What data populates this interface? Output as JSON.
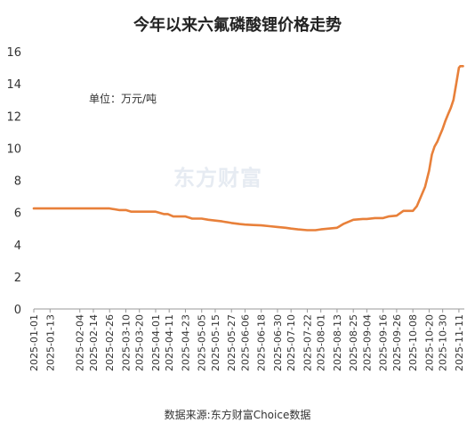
{
  "title": "今年以来六氟磷酸锂价格走势",
  "unit_note": "单位：万元/吨",
  "watermark": "东方财富",
  "source": "数据来源:东方财富Choice数据",
  "colors": {
    "line": "#E8803A",
    "axis": "#999999",
    "text": "#333333"
  },
  "chart_data": {
    "type": "line",
    "title": "今年以来六氟磷酸锂价格走势",
    "ylabel": "单位：万元/吨",
    "ylim": [
      0,
      16
    ],
    "yticks": [
      0,
      2,
      4,
      6,
      8,
      10,
      12,
      14,
      16
    ],
    "grid": false,
    "x_tick_labels": [
      "2025-01-01",
      "2025-01-13",
      "2025-02-04",
      "2025-02-14",
      "2025-02-26",
      "2025-03-10",
      "2025-03-20",
      "2025-04-01",
      "2025-04-11",
      "2025-04-23",
      "2025-05-05",
      "2025-05-15",
      "2025-05-27",
      "2025-06-06",
      "2025-06-18",
      "2025-06-30",
      "2025-07-10",
      "2025-07-22",
      "2025-08-01",
      "2025-08-13",
      "2025-08-25",
      "2025-09-04",
      "2025-09-16",
      "2025-09-26",
      "2025-10-08",
      "2025-10-20",
      "2025-10-30",
      "2025-11-11"
    ],
    "x": [
      "2025-01-01",
      "2025-02-26",
      "2025-03-05",
      "2025-03-10",
      "2025-03-14",
      "2025-04-01",
      "2025-04-07",
      "2025-04-10",
      "2025-04-14",
      "2025-04-23",
      "2025-04-28",
      "2025-05-05",
      "2025-05-10",
      "2025-05-15",
      "2025-05-20",
      "2025-05-27",
      "2025-06-02",
      "2025-06-06",
      "2025-06-12",
      "2025-06-18",
      "2025-06-24",
      "2025-06-30",
      "2025-07-06",
      "2025-07-10",
      "2025-07-15",
      "2025-07-22",
      "2025-07-28",
      "2025-08-01",
      "2025-08-07",
      "2025-08-13",
      "2025-08-18",
      "2025-08-25",
      "2025-09-01",
      "2025-09-04",
      "2025-09-10",
      "2025-09-16",
      "2025-09-20",
      "2025-09-26",
      "2025-10-01",
      "2025-10-08",
      "2025-10-11",
      "2025-10-14",
      "2025-10-17",
      "2025-10-20",
      "2025-10-22",
      "2025-10-24",
      "2025-10-26",
      "2025-10-28",
      "2025-10-30",
      "2025-11-01",
      "2025-11-03",
      "2025-11-05",
      "2025-11-07",
      "2025-11-09",
      "2025-11-11",
      "2025-11-12",
      "2025-11-13",
      "2025-11-14"
    ],
    "series": [
      {
        "values": [
          6.25,
          6.25,
          6.15,
          6.15,
          6.05,
          6.05,
          5.9,
          5.9,
          5.75,
          5.75,
          5.62,
          5.62,
          5.55,
          5.5,
          5.45,
          5.35,
          5.28,
          5.25,
          5.22,
          5.2,
          5.15,
          5.1,
          5.05,
          5.0,
          4.95,
          4.9,
          4.9,
          4.95,
          5.0,
          5.05,
          5.3,
          5.55,
          5.6,
          5.6,
          5.65,
          5.65,
          5.75,
          5.8,
          6.1,
          6.1,
          6.4,
          7.0,
          7.6,
          8.6,
          9.6,
          10.1,
          10.4,
          10.8,
          11.2,
          11.7,
          12.1,
          12.5,
          13.0,
          14.0,
          15.0,
          15.1,
          15.1,
          15.1
        ]
      }
    ]
  }
}
